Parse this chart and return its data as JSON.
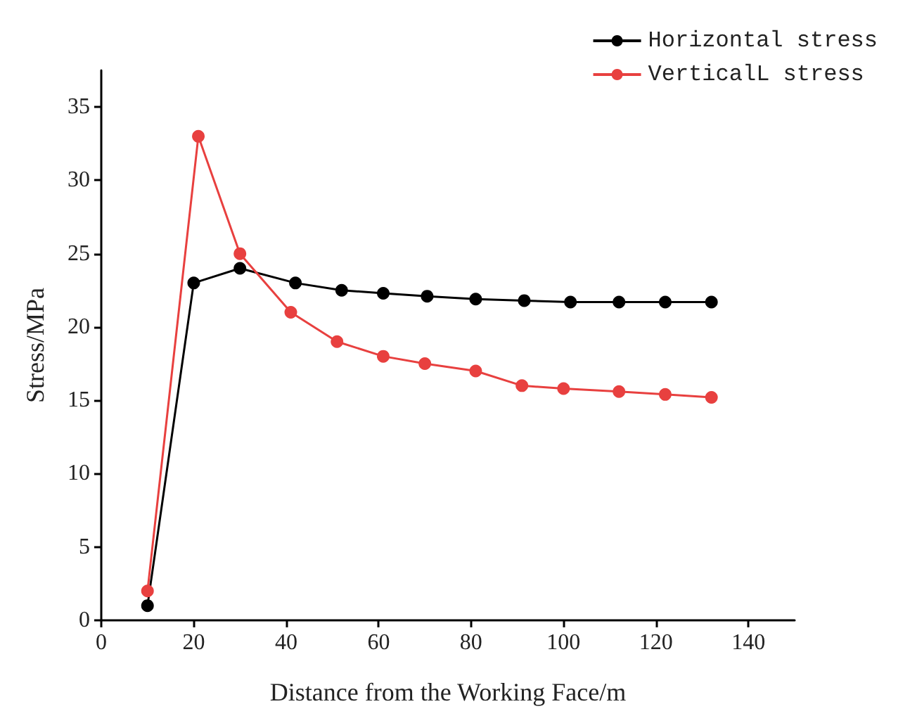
{
  "chart_data": {
    "type": "line",
    "xlabel": "Distance from the Working Face/m",
    "ylabel": "Stress/MPa",
    "xlim": [
      0,
      150
    ],
    "xticks": [
      0,
      20,
      40,
      60,
      80,
      100,
      120,
      140
    ],
    "ylim": [
      0,
      37.5
    ],
    "yticks": [
      0,
      5,
      10,
      15,
      20,
      25,
      30,
      35
    ],
    "grid": false,
    "legend": "top right",
    "marker": "circle",
    "line_style": "solid",
    "series": [
      {
        "name": "Horizontal stress",
        "color": "#000000",
        "x": [
          10,
          20,
          30,
          42,
          52,
          61,
          70.5,
          81,
          91.5,
          101.5,
          112,
          122,
          132
        ],
        "values": [
          1,
          23,
          24,
          23,
          22.5,
          22.3,
          22.1,
          21.9,
          21.8,
          21.7,
          21.7,
          21.7,
          21.7
        ]
      },
      {
        "name": "VerticalL stress",
        "color": "#e8403f",
        "x": [
          10,
          21,
          30,
          41,
          51,
          61,
          70,
          81,
          91,
          100,
          112,
          122,
          132
        ],
        "values": [
          2,
          33,
          25,
          21,
          19,
          18,
          17.5,
          17,
          16,
          15.8,
          15.6,
          15.4,
          15.2
        ]
      }
    ]
  }
}
